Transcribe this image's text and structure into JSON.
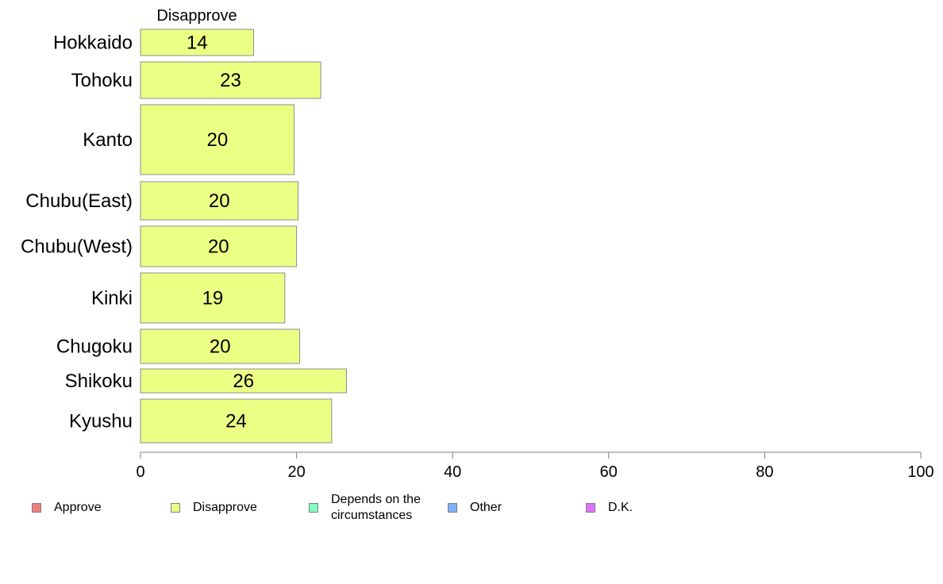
{
  "chart_data": {
    "type": "bar",
    "orientation": "horizontal",
    "panel_title": "Disapprove",
    "categories": [
      "Hokkaido",
      "Tohoku",
      "Kanto",
      "Chubu(East)",
      "Chubu(West)",
      "Kinki",
      "Chugoku",
      "Shikoku",
      "Kyushu"
    ],
    "series": [
      {
        "name": "Disapprove",
        "values": [
          14,
          23,
          20,
          20,
          20,
          19,
          20,
          26,
          24
        ],
        "color": "#ecff85"
      }
    ],
    "bar_values_precise": [
      14.5,
      23.1,
      19.7,
      20.2,
      20.0,
      18.5,
      20.4,
      26.4,
      24.5
    ],
    "xlim": [
      0,
      100
    ],
    "xticks": [
      0,
      20,
      40,
      60,
      80,
      100
    ],
    "grid": false,
    "legend_position": "bottom",
    "legend": [
      {
        "label": "Approve",
        "color": "#f08080"
      },
      {
        "label": "Disapprove",
        "color": "#ecff85"
      },
      {
        "label": "Depends on the circumstances",
        "color": "#80ffc0"
      },
      {
        "label": "Other",
        "color": "#80b0ff"
      },
      {
        "label": "D.K.",
        "color": "#e070ff"
      }
    ]
  }
}
